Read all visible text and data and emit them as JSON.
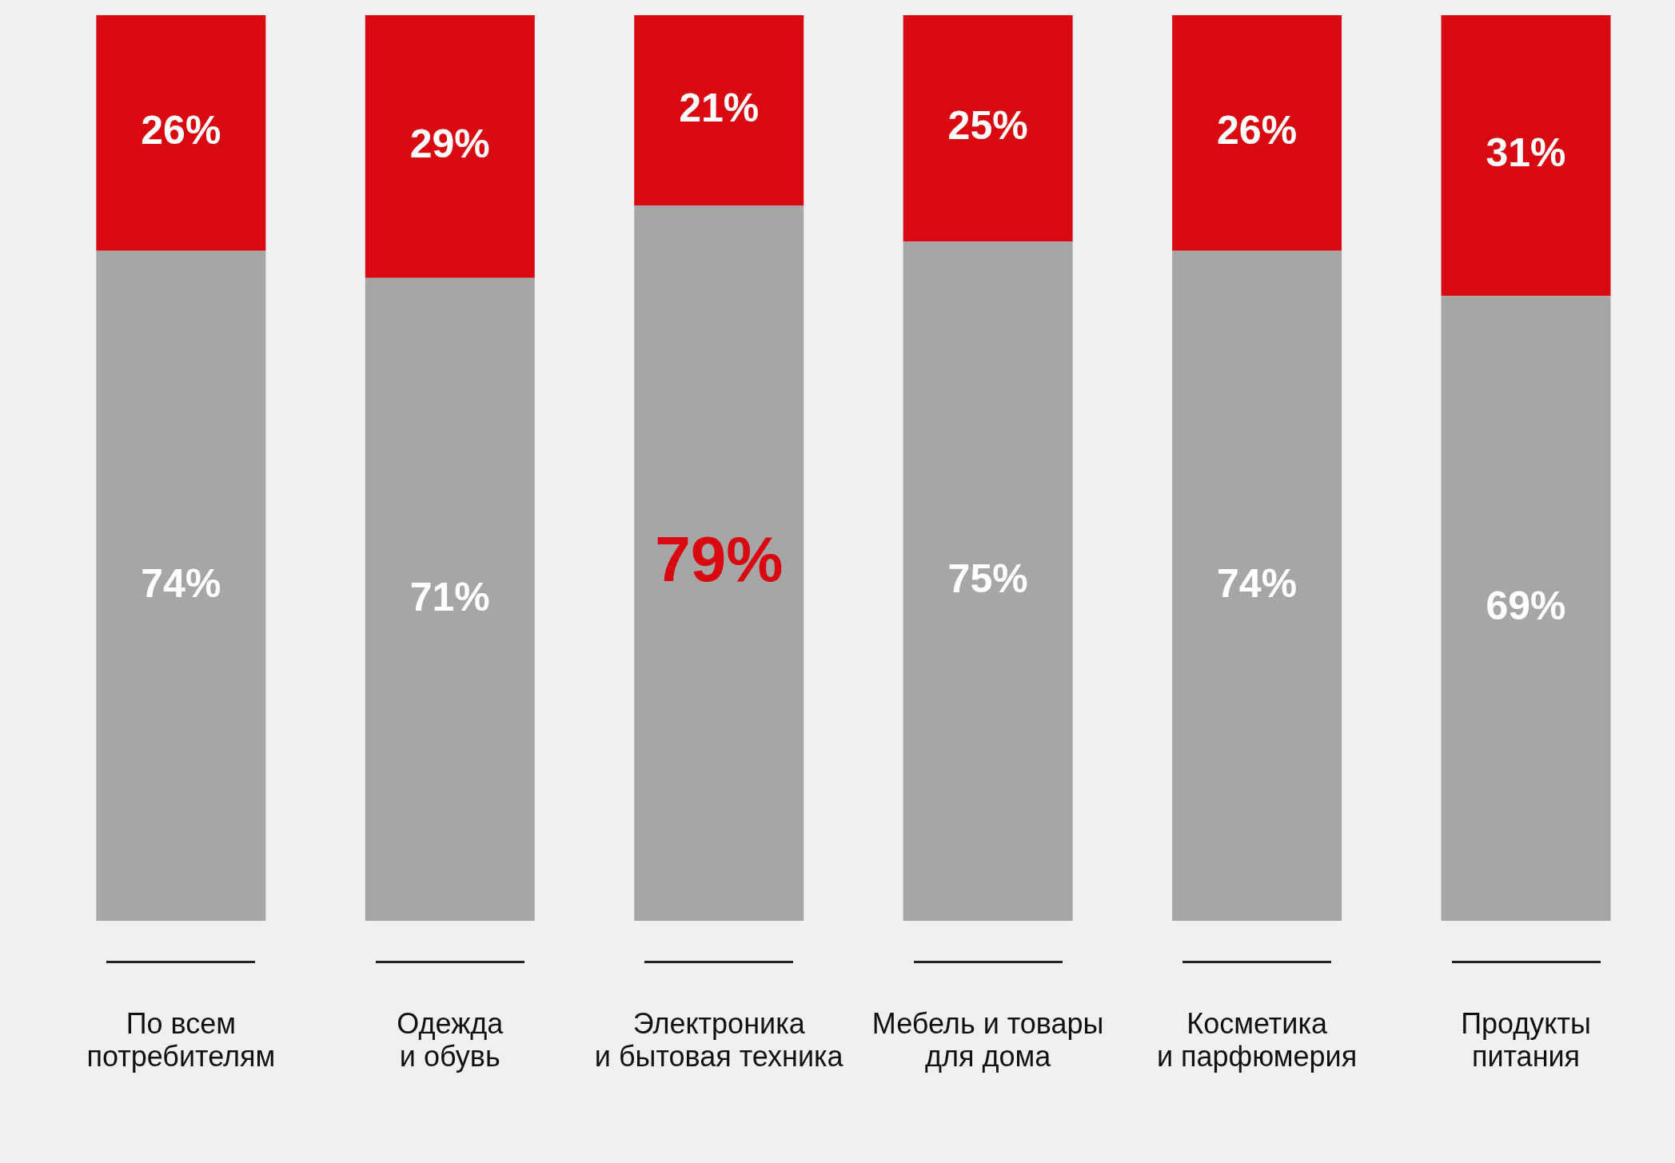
{
  "chart_data": {
    "type": "bar",
    "stacked": true,
    "grid": false,
    "legend": false,
    "tick_labels": "x",
    "categories": [
      "По всем\nпотребителям",
      "Одежда\nи обувь",
      "Электроника\nи бытовая техника",
      "Мебель и товары\nдля дома",
      "Косметика\nи парфюмерия",
      "Продукты\nпитания"
    ],
    "series": [
      {
        "color": "#a6a6a6",
        "values": [
          74,
          71,
          79,
          75,
          74,
          69
        ],
        "value_labels": [
          "74%",
          "71%",
          "79%",
          "75%",
          "74%",
          "69%"
        ]
      },
      {
        "color": "#d90912",
        "values": [
          26,
          29,
          21,
          25,
          26,
          31
        ],
        "value_labels": [
          "26%",
          "29%",
          "21%",
          "25%",
          "26%",
          "31%"
        ]
      }
    ]
  }
}
